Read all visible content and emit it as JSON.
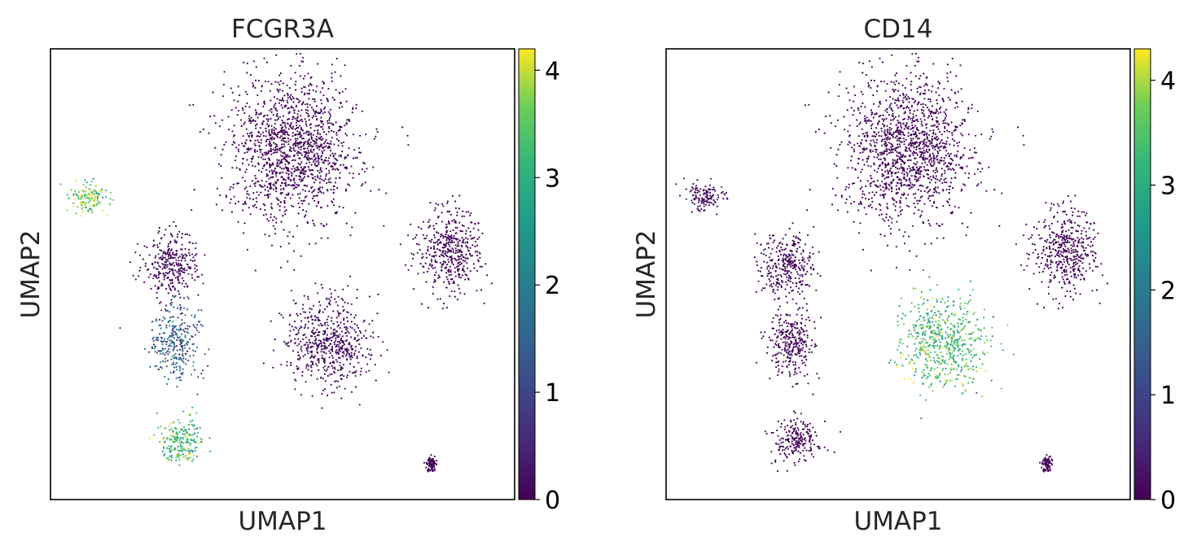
{
  "chart_data": [
    {
      "type": "scatter",
      "title": "FCGR3A",
      "xlabel": "UMAP1",
      "ylabel": "UMAP2",
      "colormap": "viridis",
      "colorbar": {
        "min": 0,
        "max": 4.2,
        "ticks": [
          "0",
          "1",
          "2",
          "3",
          "4"
        ]
      },
      "clusters": [
        {
          "name": "upper large",
          "center": [
            0.52,
            0.78
          ],
          "spread": [
            0.14,
            0.16
          ],
          "expression": 0.1
        },
        {
          "name": "top-left small",
          "center": [
            0.08,
            0.67
          ],
          "spread": [
            0.04,
            0.03
          ],
          "expression": 3.5
        },
        {
          "name": "left middle",
          "center": [
            0.26,
            0.52
          ],
          "spread": [
            0.06,
            0.07
          ],
          "expression": 0.4
        },
        {
          "name": "left lower",
          "center": [
            0.27,
            0.35
          ],
          "spread": [
            0.05,
            0.08
          ],
          "expression": 1.4
        },
        {
          "name": "bottom-left",
          "center": [
            0.28,
            0.13
          ],
          "spread": [
            0.05,
            0.05
          ],
          "expression": 3.2
        },
        {
          "name": "center right",
          "center": [
            0.6,
            0.35
          ],
          "spread": [
            0.09,
            0.1
          ],
          "expression": 0.5
        },
        {
          "name": "far right",
          "center": [
            0.86,
            0.55
          ],
          "spread": [
            0.07,
            0.09
          ],
          "expression": 0.1
        },
        {
          "name": "tiny bottom",
          "center": [
            0.82,
            0.08
          ],
          "spread": [
            0.01,
            0.02
          ],
          "expression": 0.1
        }
      ]
    },
    {
      "type": "scatter",
      "title": "CD14",
      "xlabel": "UMAP1",
      "ylabel": "UMAP2",
      "colormap": "viridis",
      "colorbar": {
        "min": 0,
        "max": 4.3,
        "ticks": [
          "0",
          "1",
          "2",
          "3",
          "4"
        ]
      },
      "clusters": [
        {
          "name": "upper large",
          "center": [
            0.52,
            0.78
          ],
          "spread": [
            0.14,
            0.16
          ],
          "expression": 0.1
        },
        {
          "name": "top-left small",
          "center": [
            0.08,
            0.67
          ],
          "spread": [
            0.04,
            0.03
          ],
          "expression": 0.6
        },
        {
          "name": "left middle",
          "center": [
            0.26,
            0.52
          ],
          "spread": [
            0.06,
            0.07
          ],
          "expression": 0.3
        },
        {
          "name": "left lower",
          "center": [
            0.27,
            0.35
          ],
          "spread": [
            0.05,
            0.08
          ],
          "expression": 0.2
        },
        {
          "name": "bottom-left",
          "center": [
            0.28,
            0.13
          ],
          "spread": [
            0.05,
            0.05
          ],
          "expression": 0.2
        },
        {
          "name": "center right",
          "center": [
            0.6,
            0.35
          ],
          "spread": [
            0.09,
            0.1
          ],
          "expression": 3.3
        },
        {
          "name": "far right",
          "center": [
            0.86,
            0.55
          ],
          "spread": [
            0.07,
            0.09
          ],
          "expression": 0.1
        },
        {
          "name": "tiny bottom",
          "center": [
            0.82,
            0.08
          ],
          "spread": [
            0.01,
            0.02
          ],
          "expression": 0.1
        }
      ]
    }
  ]
}
